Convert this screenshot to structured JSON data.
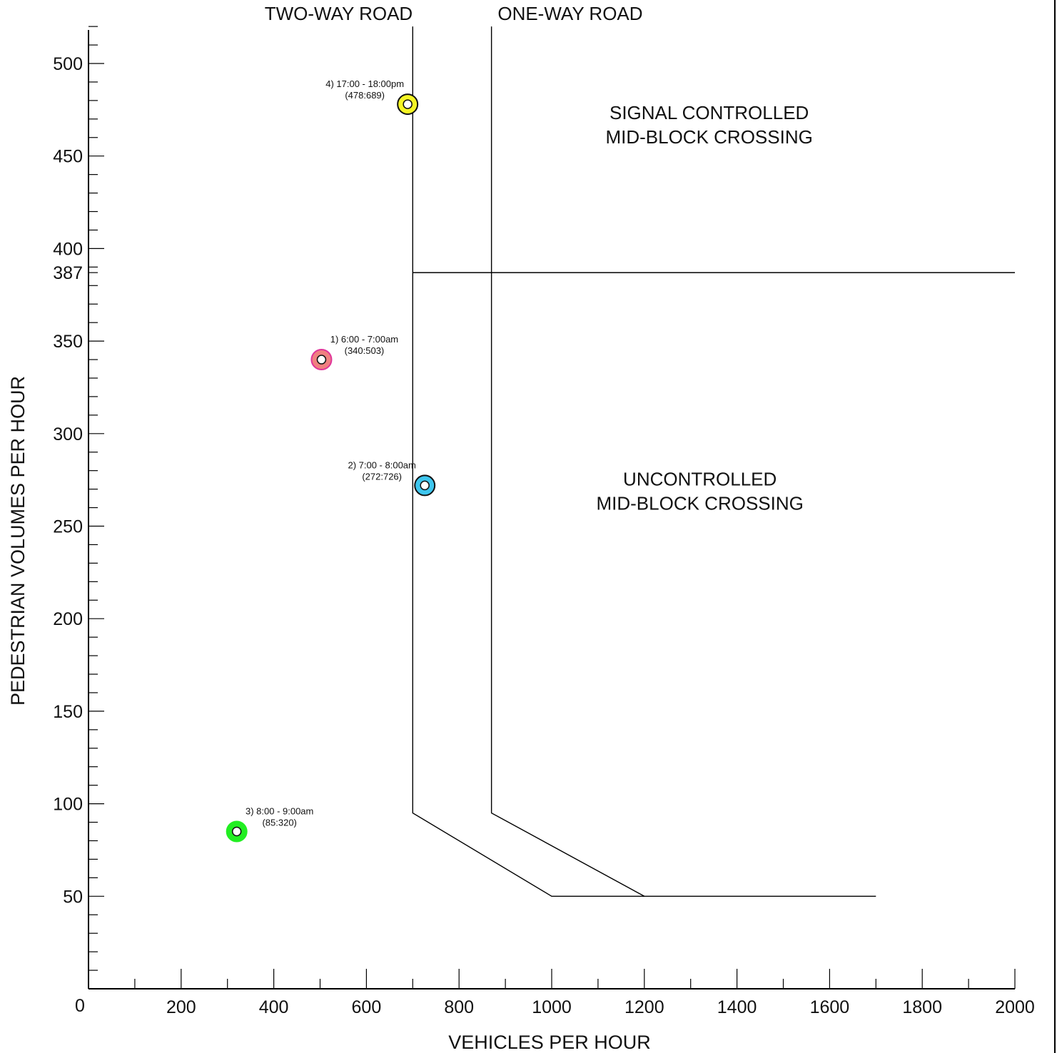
{
  "chart_data": {
    "type": "scatter",
    "xlabel": "VEHICLES PER HOUR",
    "ylabel": "PEDESTRIAN VOLUMES PER HOUR",
    "xlim": [
      0,
      2000
    ],
    "ylim": [
      0,
      520
    ],
    "x_ticks": [
      {
        "value": 0,
        "label": "0"
      },
      {
        "value": 200,
        "label": "200"
      },
      {
        "value": 400,
        "label": "400"
      },
      {
        "value": 600,
        "label": "600"
      },
      {
        "value": 800,
        "label": "800"
      },
      {
        "value": 1000,
        "label": "1000"
      },
      {
        "value": 1200,
        "label": "1200"
      },
      {
        "value": 1400,
        "label": "1400"
      },
      {
        "value": 1600,
        "label": "1600"
      },
      {
        "value": 1800,
        "label": "1800"
      },
      {
        "value": 2000,
        "label": "2000"
      }
    ],
    "y_ticks": [
      {
        "value": 50,
        "label": "50"
      },
      {
        "value": 100,
        "label": "100"
      },
      {
        "value": 150,
        "label": "150"
      },
      {
        "value": 200,
        "label": "200"
      },
      {
        "value": 250,
        "label": "250"
      },
      {
        "value": 300,
        "label": "300"
      },
      {
        "value": 350,
        "label": "350"
      },
      {
        "value": 387,
        "label": "387"
      },
      {
        "value": 400,
        "label": "400"
      },
      {
        "value": 450,
        "label": "450"
      },
      {
        "value": 500,
        "label": "500"
      }
    ],
    "minor_x_step": 100,
    "minor_y_step": 10,
    "grid": false,
    "road_labels": [
      {
        "text": "TWO-WAY ROAD",
        "x": 540
      },
      {
        "text": "ONE-WAY ROAD",
        "x": 1040
      }
    ],
    "boundaries": [
      {
        "name": "two-way",
        "points": [
          [
            700,
            520
          ],
          [
            700,
            95
          ],
          [
            1000,
            50
          ],
          [
            1700,
            50
          ]
        ]
      },
      {
        "name": "one-way",
        "points": [
          [
            870,
            520
          ],
          [
            870,
            95
          ],
          [
            1200,
            50
          ]
        ]
      },
      {
        "name": "signal-threshold",
        "points": [
          [
            700,
            387
          ],
          [
            2000,
            387
          ]
        ]
      }
    ],
    "regions": [
      {
        "lines": [
          "SIGNAL CONTROLLED",
          "MID-BLOCK CROSSING"
        ],
        "x": 1340,
        "y": 470
      },
      {
        "lines": [
          "UNCONTROLLED",
          "MID-BLOCK CROSSING"
        ],
        "x": 1320,
        "y": 272
      }
    ],
    "points": [
      {
        "id": 1,
        "x": 503,
        "y": 340,
        "label_line1": "1) 6:00 - 7:00am",
        "label_line2": "(340:503)",
        "color": "#f08080",
        "ring": "#e0359a",
        "label_side": "right"
      },
      {
        "id": 2,
        "x": 726,
        "y": 272,
        "label_line1": "2) 7:00 - 8:00am",
        "label_line2": "(272:726)",
        "color": "#3ec6ee",
        "ring": "#111111",
        "label_side": "left"
      },
      {
        "id": 3,
        "x": 320,
        "y": 85,
        "label_line1": "3) 8:00 - 9:00am",
        "label_line2": "(85:320)",
        "color": "#22ee22",
        "ring": "#22ee22",
        "label_side": "right"
      },
      {
        "id": 4,
        "x": 689,
        "y": 478,
        "label_line1": "4) 17:00 - 18:00pm",
        "label_line2": "(478:689)",
        "color": "#f5f525",
        "ring": "#111111",
        "label_side": "left"
      }
    ]
  }
}
